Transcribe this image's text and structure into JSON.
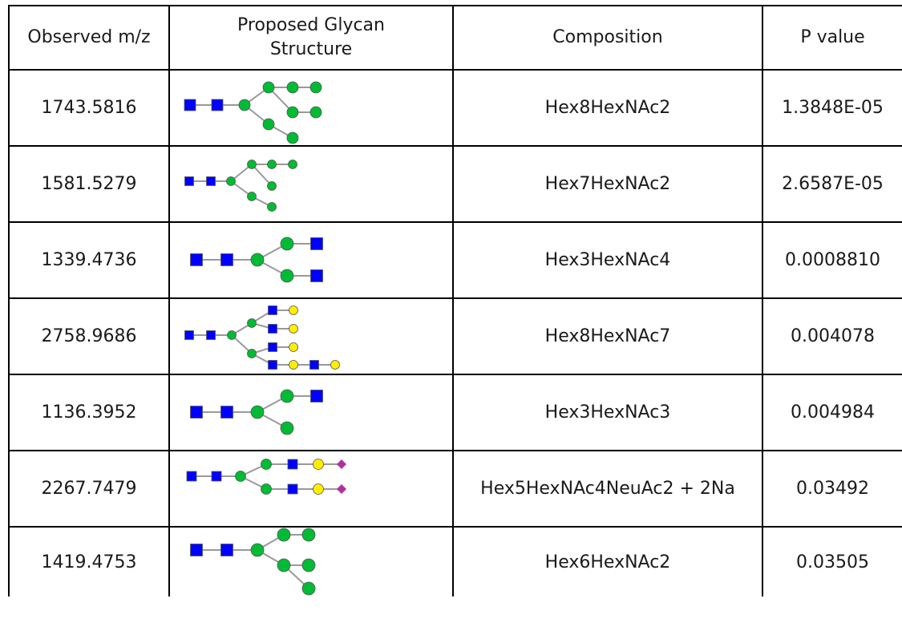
{
  "table": {
    "headers": {
      "observed": "Observed m/z",
      "structure": "Proposed Glycan Structure",
      "composition": "Composition",
      "pvalue": "P value"
    },
    "rows": [
      {
        "mz": "1743.5816",
        "composition": "Hex8HexNAc2",
        "pvalue": "1.3848E-05",
        "structure_icon": "glycan-high-mannose-man8-icon"
      },
      {
        "mz": "1581.5279",
        "composition": "Hex7HexNAc2",
        "pvalue": "2.6587E-05",
        "structure_icon": "glycan-high-mannose-man7-icon"
      },
      {
        "mz": "1339.4736",
        "composition": "Hex3HexNAc4",
        "pvalue": "0.0008810",
        "structure_icon": "glycan-agalacto-biantennary-icon"
      },
      {
        "mz": "2758.9686",
        "composition": "Hex8HexNAc7",
        "pvalue": "0.004078",
        "structure_icon": "glycan-tetraantennary-icon"
      },
      {
        "mz": "1136.3952",
        "composition": "Hex3HexNAc3",
        "pvalue": "0.004984",
        "structure_icon": "glycan-hybrid-monoantennary-icon"
      },
      {
        "mz": "2267.7479",
        "composition": "Hex5HexNAc4NeuAc2 + 2Na",
        "pvalue": "0.03492",
        "structure_icon": "glycan-disialylated-biantennary-icon"
      },
      {
        "mz": "1419.4753",
        "composition": "Hex6HexNAc2",
        "pvalue": "0.03505",
        "structure_icon": "glycan-high-mannose-man6-icon"
      }
    ],
    "symbol_colors": {
      "glcnac": "#0000ff",
      "mannose": "#00bb33",
      "galactose": "#ffee00",
      "neuac": "#b0309f",
      "linkage": "#999999"
    }
  }
}
